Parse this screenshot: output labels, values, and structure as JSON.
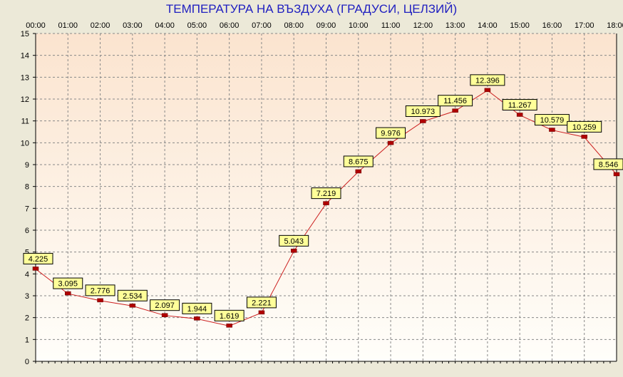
{
  "chart_data": {
    "type": "line",
    "title": "ТЕМПЕРАТУРА НА ВЪЗДУХА  (ГРАДУСИ, ЦЕЛЗИЙ)",
    "xlabel": "",
    "ylabel": "",
    "categories": [
      "00:00",
      "01:00",
      "02:00",
      "03:00",
      "04:00",
      "05:00",
      "06:00",
      "07:00",
      "08:00",
      "09:00",
      "10:00",
      "11:00",
      "12:00",
      "13:00",
      "14:00",
      "15:00",
      "16:00",
      "17:00",
      "18:00"
    ],
    "x_tick_labels": [
      "00:00",
      "01:00",
      "02:00",
      "03:00",
      "04:00",
      "05:00",
      "06:00",
      "07:00",
      "08:00",
      "09:00",
      "10:00",
      "11:00",
      "12:00",
      "13:00",
      "14:00",
      "15:00",
      "16:00",
      "17:00",
      "18:00"
    ],
    "y_tick_labels": [
      "0",
      "1",
      "2",
      "3",
      "4",
      "5",
      "6",
      "7",
      "8",
      "9",
      "10",
      "11",
      "12",
      "13",
      "14",
      "15"
    ],
    "ylim": [
      0,
      15
    ],
    "grid": true,
    "x_axis_position": "top",
    "series": [
      {
        "values": [
          4.225,
          3.095,
          2.776,
          2.534,
          2.097,
          1.944,
          1.619,
          2.221,
          5.043,
          7.219,
          8.675,
          9.976,
          10.973,
          11.456,
          12.396,
          11.267,
          10.579,
          10.259,
          8.546
        ],
        "labels": [
          "4.225",
          "3.095",
          "2.776",
          "2.534",
          "2.097",
          "1.944",
          "1.619",
          "2.221",
          "5.043",
          "7.219",
          "8.675",
          "9.976",
          "10.973",
          "11.456",
          "12.396",
          "11.267",
          "10.579",
          "10.259",
          "8.546"
        ],
        "color": "#cc2020"
      }
    ],
    "colors": {
      "title": "#2020c0",
      "line": "#cc2020",
      "marker": "#b00000",
      "label_bg": "#ffff99",
      "grid": "#888888",
      "plot_bg_top": "#fbe4cf",
      "plot_bg_bottom": "#fffefa"
    }
  }
}
